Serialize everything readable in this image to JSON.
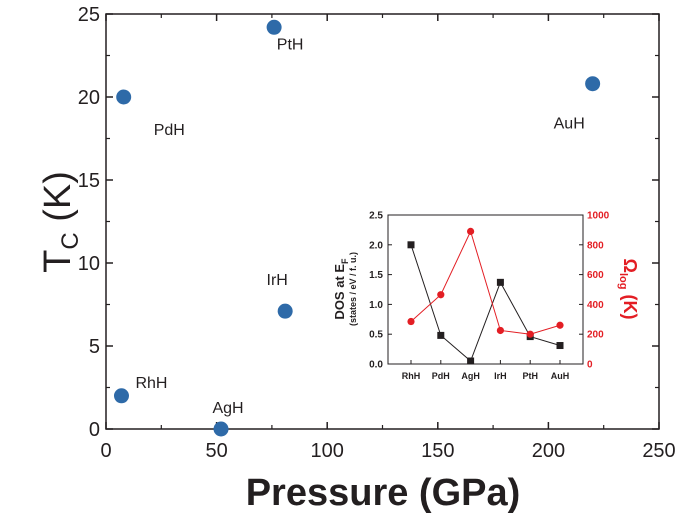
{
  "chart_data": [
    {
      "type": "scatter",
      "xlabel": "Pressure (GPa)",
      "ylabel_main": "T",
      "ylabel_sub": "C",
      "ylabel_unit": " (K)",
      "xlim": [
        0,
        250
      ],
      "ylim": [
        0,
        25
      ],
      "xticks": [
        0,
        50,
        100,
        150,
        200,
        250
      ],
      "yticks": [
        0,
        5,
        10,
        15,
        20,
        25
      ],
      "point_color": "#2e6aa8",
      "points": [
        {
          "label": "RhH",
          "x": 7,
          "y": 2.0
        },
        {
          "label": "PdH",
          "x": 8,
          "y": 20.0
        },
        {
          "label": "AgH",
          "x": 52,
          "y": 0.0
        },
        {
          "label": "PtH",
          "x": 76,
          "y": 24.2
        },
        {
          "label": "IrH",
          "x": 81,
          "y": 7.1
        },
        {
          "label": "AuH",
          "x": 220,
          "y": 20.8
        }
      ]
    },
    {
      "type": "line",
      "inset": true,
      "categories": [
        "RhH",
        "PdH",
        "AgH",
        "IrH",
        "PtH",
        "AuH"
      ],
      "ylabel_left_main": "DOS at E",
      "ylabel_left_sub": "F",
      "ylabel_left_line2": "(states / eV / f. u.)",
      "ylabel_right_main": "Ω",
      "ylabel_right_sub": "log",
      "ylabel_right_unit": " (K)",
      "ylim_left": [
        0,
        2.5
      ],
      "ylim_right": [
        0,
        1000
      ],
      "yticks_left": [
        "0.0",
        "0.5",
        "1.0",
        "1.5",
        "2.0",
        "2.5"
      ],
      "yticks_right": [
        "0",
        "200",
        "400",
        "600",
        "800",
        "1000"
      ],
      "series": [
        {
          "axis": "left",
          "color": "#231f20",
          "marker": "square",
          "values": [
            2.0,
            0.48,
            0.05,
            1.37,
            0.46,
            0.31
          ]
        },
        {
          "axis": "right",
          "color": "#e31e24",
          "marker": "circle",
          "values": [
            285,
            465,
            890,
            225,
            200,
            260
          ]
        }
      ]
    }
  ]
}
